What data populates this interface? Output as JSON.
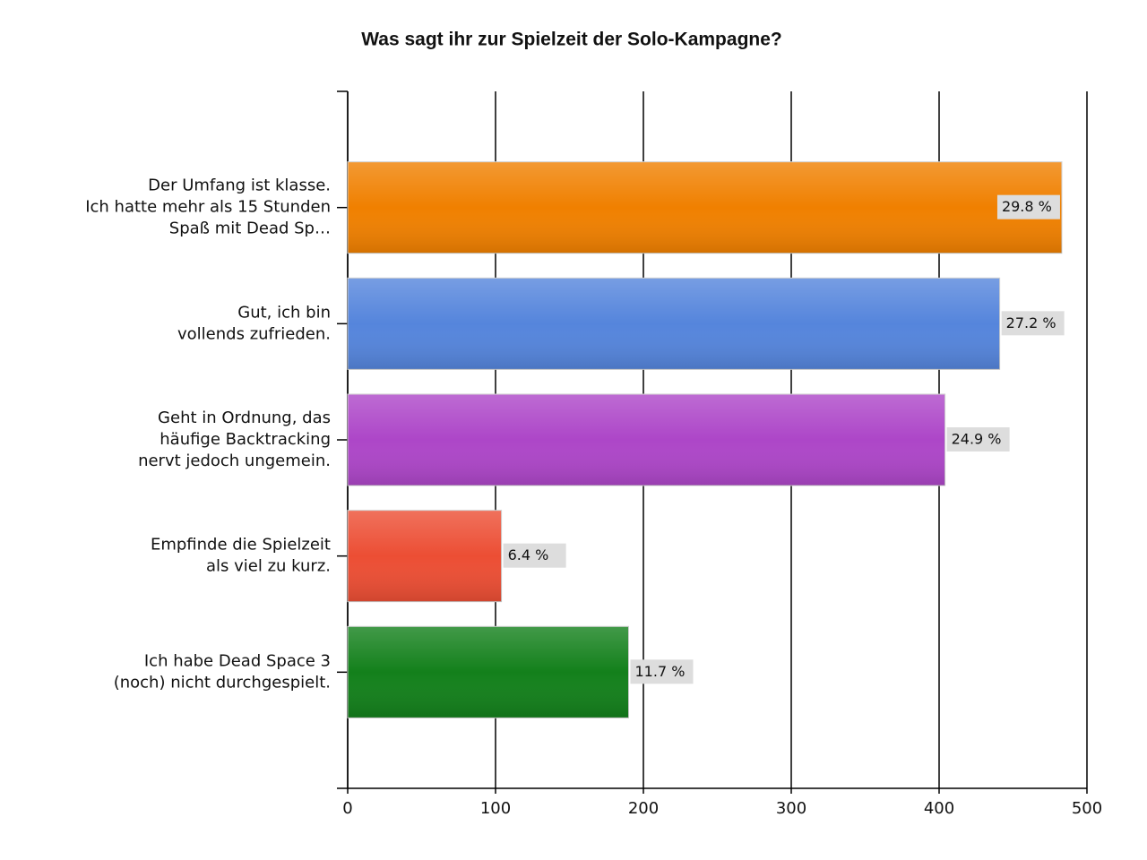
{
  "chart_data": {
    "type": "hbar",
    "title": "Was sagt ihr zur Spielzeit der Solo-Kampagne?",
    "categories": [
      [
        "Der Umfang ist klasse.",
        "Ich hatte mehr als 15 Stunden",
        "Spaß mit Dead Sp…"
      ],
      [
        "Gut, ich bin",
        "vollends zufrieden."
      ],
      [
        "Geht in Ordnung, das",
        "häufige Backtracking",
        "nervt jedoch ungemein."
      ],
      [
        "Empfinde die Spielzeit",
        "als viel zu kurz."
      ],
      [
        "Ich habe Dead Space 3",
        "(noch) nicht durchgespielt."
      ]
    ],
    "values": [
      483,
      441,
      404,
      104,
      190
    ],
    "colors": [
      "#f08000",
      "#5585dc",
      "#ad46c8",
      "#ec4e34",
      "#13801b"
    ],
    "percentages": {
      "values": [
        29.8,
        27.2,
        24.9,
        6.4,
        11.7
      ],
      "value_labels": [
        "29.8 %",
        "27.2 %",
        "24.9 %",
        "6.4 %",
        "11.7 %"
      ]
    },
    "xlim": [
      0,
      500
    ],
    "xticks": [
      0,
      100,
      200,
      300,
      400,
      500
    ],
    "grid": true
  }
}
